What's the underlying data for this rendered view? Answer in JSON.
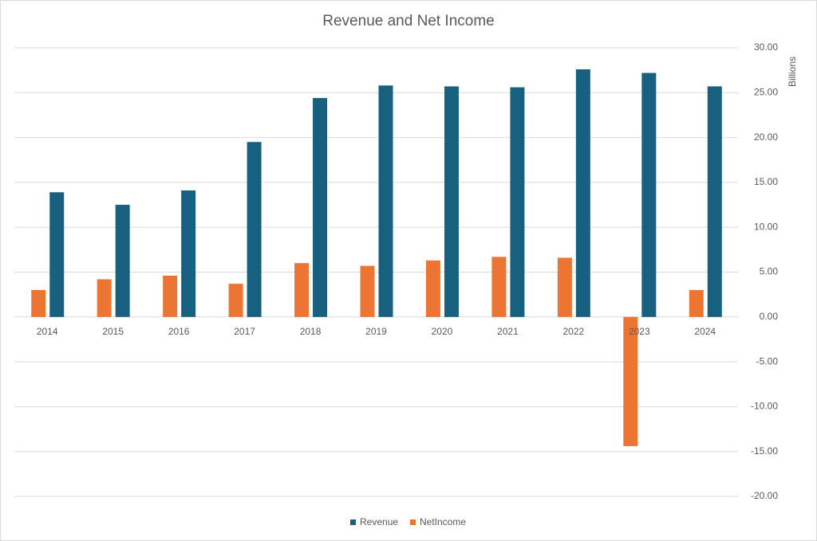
{
  "chart_data": {
    "type": "bar",
    "title": "Revenue and Net Income",
    "y_axis_label": "Billions",
    "categories": [
      "2014",
      "2015",
      "2016",
      "2017",
      "2018",
      "2019",
      "2020",
      "2021",
      "2022",
      "2023",
      "2024"
    ],
    "series": [
      {
        "name": "Revenue",
        "color": "#17607f",
        "values": [
          13.9,
          12.5,
          14.1,
          19.5,
          24.4,
          25.8,
          25.7,
          25.6,
          27.6,
          27.2,
          25.7
        ]
      },
      {
        "name": "NetIncome",
        "color": "#ed7533",
        "values": [
          3.0,
          4.2,
          4.6,
          3.7,
          6.0,
          5.7,
          6.3,
          6.7,
          6.6,
          -14.4,
          3.0
        ]
      }
    ],
    "ylim": [
      -20,
      30
    ],
    "yticks": [
      {
        "value": -20,
        "label": "-20.00"
      },
      {
        "value": -15,
        "label": "-15.00"
      },
      {
        "value": -10,
        "label": "-10.00"
      },
      {
        "value": -5,
        "label": "-5.00"
      },
      {
        "value": 0,
        "label": "0.00"
      },
      {
        "value": 5,
        "label": "5.00"
      },
      {
        "value": 10,
        "label": "10.00"
      },
      {
        "value": 15,
        "label": "15.00"
      },
      {
        "value": 20,
        "label": "20.00"
      },
      {
        "value": 25,
        "label": "25.00"
      },
      {
        "value": 30,
        "label": "30.00"
      }
    ],
    "grid": true,
    "legend": "bottom"
  }
}
